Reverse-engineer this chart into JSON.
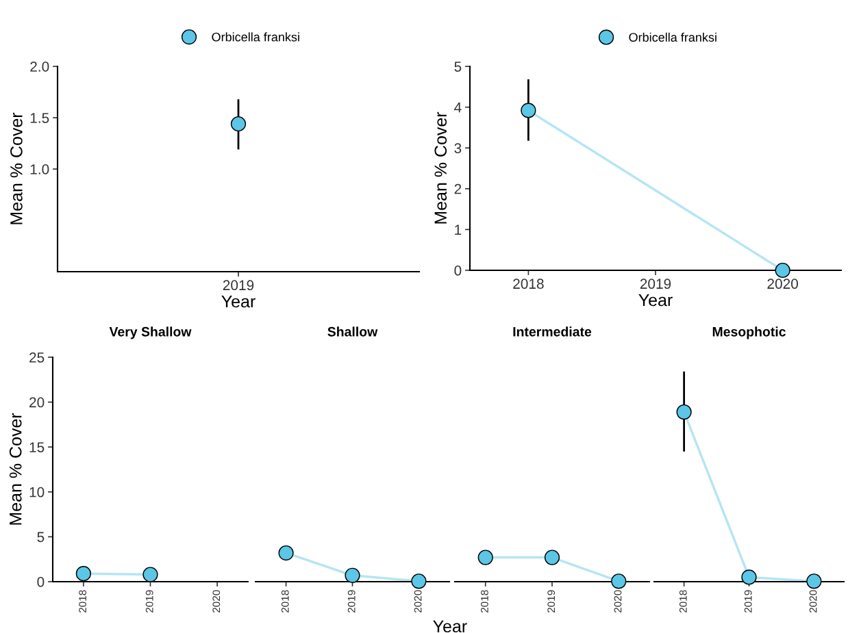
{
  "chart_data": [
    {
      "type": "line",
      "categories": [
        "2019"
      ],
      "xlabel": "Year",
      "ylabel": "Mean % Cover",
      "ylim": [
        0,
        2
      ],
      "yticks": [
        {
          "value": 1,
          "label": "1.0"
        },
        1.5,
        {
          "value": 2,
          "label": "2.0"
        }
      ],
      "legend": "top",
      "marker": "circle",
      "grid": false,
      "series": [
        {
          "name": "Orbicella franksi",
          "color": "#5bc6e6",
          "values": [
            1.44
          ],
          "errors": [
            [
              1.2,
              1.67
            ]
          ]
        }
      ]
    },
    {
      "type": "line",
      "categories": [
        "2018",
        "2019",
        "2020"
      ],
      "xlabel": "Year",
      "ylabel": "Mean % Cover",
      "ylim": [
        0,
        5
      ],
      "yticks": [
        0,
        1,
        2,
        3,
        4,
        5
      ],
      "legend": "top",
      "marker": "circle",
      "grid": false,
      "series": [
        {
          "name": "Orbicella franksi",
          "color": "#5bc6e6",
          "values": [
            3.92,
            null,
            0
          ],
          "errors": [
            [
              3.2,
              4.66
            ],
            null,
            null
          ]
        }
      ]
    },
    {
      "type": "line",
      "title": "Very Shallow",
      "categories": [
        "2018",
        "2019",
        "2020"
      ],
      "ylabel": "Mean % Cover",
      "ylim": [
        0,
        25
      ],
      "yticks": [
        0,
        5,
        10,
        15,
        20,
        25
      ],
      "marker": "circle",
      "grid": false,
      "series": [
        {
          "color": "#5bc6e6",
          "values": [
            0.9,
            0.8,
            null
          ]
        }
      ]
    },
    {
      "type": "line",
      "title": "Shallow",
      "categories": [
        "2018",
        "2019",
        "2020"
      ],
      "ylim": [
        0,
        25
      ],
      "tick_labels": "x",
      "marker": "circle",
      "grid": false,
      "series": [
        {
          "color": "#5bc6e6",
          "values": [
            3.2,
            0.7,
            0.05
          ]
        }
      ]
    },
    {
      "type": "line",
      "title": "Intermediate",
      "categories": [
        "2018",
        "2019",
        "2020"
      ],
      "xlabel": "Year",
      "ylim": [
        0,
        25
      ],
      "tick_labels": "x",
      "marker": "circle",
      "grid": false,
      "series": [
        {
          "color": "#5bc6e6",
          "values": [
            2.7,
            2.7,
            0.05
          ]
        }
      ]
    },
    {
      "type": "line",
      "title": "Mesophotic",
      "categories": [
        "2018",
        "2019",
        "2020"
      ],
      "ylim": [
        0,
        25
      ],
      "tick_labels": "x",
      "marker": "circle",
      "grid": false,
      "series": [
        {
          "color": "#5bc6e6",
          "values": [
            18.9,
            0.5,
            0.05
          ],
          "errors": [
            [
              14.6,
              23.3
            ],
            null,
            null
          ]
        }
      ]
    }
  ]
}
